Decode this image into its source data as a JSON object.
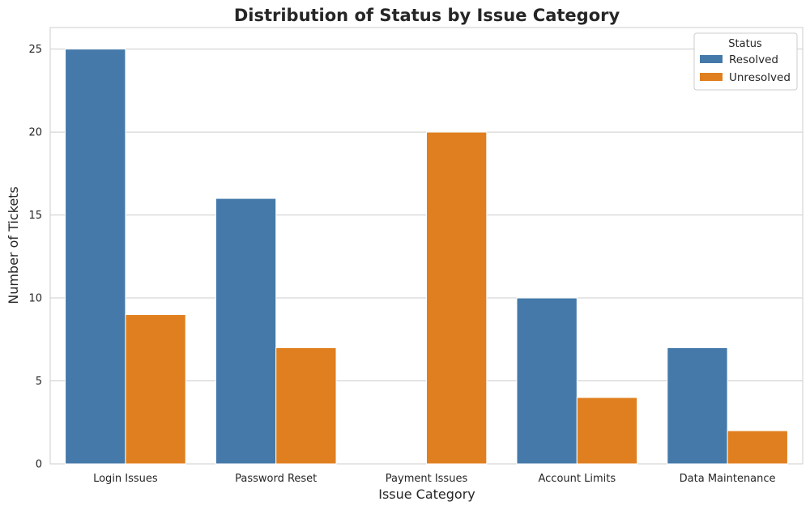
{
  "chart_data": {
    "type": "bar",
    "title": "Distribution of Status by Issue Category",
    "xlabel": "Issue Category",
    "ylabel": "Number of Tickets",
    "categories": [
      "Login Issues",
      "Password Reset",
      "Payment Issues",
      "Account Limits",
      "Data Maintenance"
    ],
    "series": [
      {
        "name": "Resolved",
        "values": [
          25,
          16,
          0,
          10,
          7
        ],
        "color": "#4479a9"
      },
      {
        "name": "Unresolved",
        "values": [
          9,
          7,
          20,
          4,
          2
        ],
        "color": "#e07f1f"
      }
    ],
    "ylim": [
      0,
      26.3
    ],
    "yticks": [
      0,
      5,
      10,
      15,
      20,
      25
    ],
    "grid": true,
    "legend": {
      "title": "Status",
      "placement": "top-right"
    }
  }
}
